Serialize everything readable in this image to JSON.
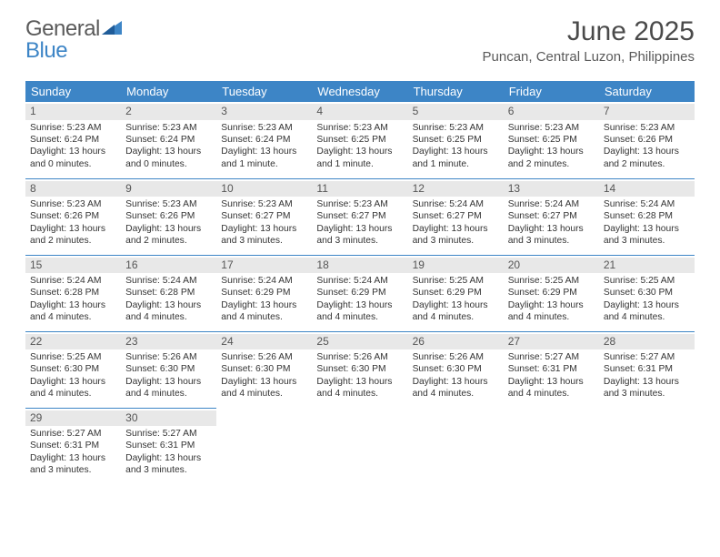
{
  "brand": {
    "part1": "General",
    "part2": "Blue"
  },
  "title": "June 2025",
  "location": "Puncan, Central Luzon, Philippines",
  "colors": {
    "header_bg": "#3d85c6",
    "header_text": "#ffffff",
    "day_num_bg": "#e8e8e8",
    "body_text": "#333333",
    "brand_gray": "#5a5a5a",
    "brand_blue": "#3d85c6",
    "divider": "#3d85c6"
  },
  "weekdays": [
    "Sunday",
    "Monday",
    "Tuesday",
    "Wednesday",
    "Thursday",
    "Friday",
    "Saturday"
  ],
  "weeks": [
    [
      {
        "n": "1",
        "sr": "5:23 AM",
        "ss": "6:24 PM",
        "dl": "13 hours and 0 minutes."
      },
      {
        "n": "2",
        "sr": "5:23 AM",
        "ss": "6:24 PM",
        "dl": "13 hours and 0 minutes."
      },
      {
        "n": "3",
        "sr": "5:23 AM",
        "ss": "6:24 PM",
        "dl": "13 hours and 1 minute."
      },
      {
        "n": "4",
        "sr": "5:23 AM",
        "ss": "6:25 PM",
        "dl": "13 hours and 1 minute."
      },
      {
        "n": "5",
        "sr": "5:23 AM",
        "ss": "6:25 PM",
        "dl": "13 hours and 1 minute."
      },
      {
        "n": "6",
        "sr": "5:23 AM",
        "ss": "6:25 PM",
        "dl": "13 hours and 2 minutes."
      },
      {
        "n": "7",
        "sr": "5:23 AM",
        "ss": "6:26 PM",
        "dl": "13 hours and 2 minutes."
      }
    ],
    [
      {
        "n": "8",
        "sr": "5:23 AM",
        "ss": "6:26 PM",
        "dl": "13 hours and 2 minutes."
      },
      {
        "n": "9",
        "sr": "5:23 AM",
        "ss": "6:26 PM",
        "dl": "13 hours and 2 minutes."
      },
      {
        "n": "10",
        "sr": "5:23 AM",
        "ss": "6:27 PM",
        "dl": "13 hours and 3 minutes."
      },
      {
        "n": "11",
        "sr": "5:23 AM",
        "ss": "6:27 PM",
        "dl": "13 hours and 3 minutes."
      },
      {
        "n": "12",
        "sr": "5:24 AM",
        "ss": "6:27 PM",
        "dl": "13 hours and 3 minutes."
      },
      {
        "n": "13",
        "sr": "5:24 AM",
        "ss": "6:27 PM",
        "dl": "13 hours and 3 minutes."
      },
      {
        "n": "14",
        "sr": "5:24 AM",
        "ss": "6:28 PM",
        "dl": "13 hours and 3 minutes."
      }
    ],
    [
      {
        "n": "15",
        "sr": "5:24 AM",
        "ss": "6:28 PM",
        "dl": "13 hours and 4 minutes."
      },
      {
        "n": "16",
        "sr": "5:24 AM",
        "ss": "6:28 PM",
        "dl": "13 hours and 4 minutes."
      },
      {
        "n": "17",
        "sr": "5:24 AM",
        "ss": "6:29 PM",
        "dl": "13 hours and 4 minutes."
      },
      {
        "n": "18",
        "sr": "5:24 AM",
        "ss": "6:29 PM",
        "dl": "13 hours and 4 minutes."
      },
      {
        "n": "19",
        "sr": "5:25 AM",
        "ss": "6:29 PM",
        "dl": "13 hours and 4 minutes."
      },
      {
        "n": "20",
        "sr": "5:25 AM",
        "ss": "6:29 PM",
        "dl": "13 hours and 4 minutes."
      },
      {
        "n": "21",
        "sr": "5:25 AM",
        "ss": "6:30 PM",
        "dl": "13 hours and 4 minutes."
      }
    ],
    [
      {
        "n": "22",
        "sr": "5:25 AM",
        "ss": "6:30 PM",
        "dl": "13 hours and 4 minutes."
      },
      {
        "n": "23",
        "sr": "5:26 AM",
        "ss": "6:30 PM",
        "dl": "13 hours and 4 minutes."
      },
      {
        "n": "24",
        "sr": "5:26 AM",
        "ss": "6:30 PM",
        "dl": "13 hours and 4 minutes."
      },
      {
        "n": "25",
        "sr": "5:26 AM",
        "ss": "6:30 PM",
        "dl": "13 hours and 4 minutes."
      },
      {
        "n": "26",
        "sr": "5:26 AM",
        "ss": "6:30 PM",
        "dl": "13 hours and 4 minutes."
      },
      {
        "n": "27",
        "sr": "5:27 AM",
        "ss": "6:31 PM",
        "dl": "13 hours and 4 minutes."
      },
      {
        "n": "28",
        "sr": "5:27 AM",
        "ss": "6:31 PM",
        "dl": "13 hours and 3 minutes."
      }
    ],
    [
      {
        "n": "29",
        "sr": "5:27 AM",
        "ss": "6:31 PM",
        "dl": "13 hours and 3 minutes."
      },
      {
        "n": "30",
        "sr": "5:27 AM",
        "ss": "6:31 PM",
        "dl": "13 hours and 3 minutes."
      },
      null,
      null,
      null,
      null,
      null
    ]
  ],
  "labels": {
    "sunrise": "Sunrise:",
    "sunset": "Sunset:",
    "daylight": "Daylight:"
  }
}
